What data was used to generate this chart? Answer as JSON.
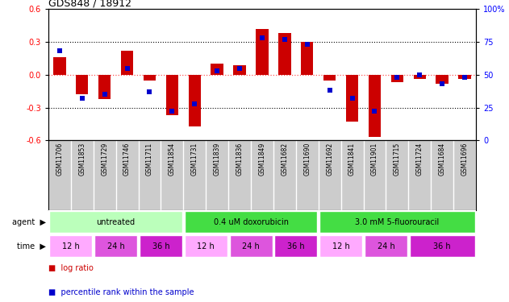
{
  "title": "GDS848 / 18912",
  "samples": [
    "GSM11706",
    "GSM11853",
    "GSM11729",
    "GSM11746",
    "GSM11711",
    "GSM11854",
    "GSM11731",
    "GSM11839",
    "GSM11836",
    "GSM11849",
    "GSM11682",
    "GSM11690",
    "GSM11692",
    "GSM11841",
    "GSM11901",
    "GSM11715",
    "GSM11724",
    "GSM11684",
    "GSM11696"
  ],
  "log_ratio": [
    0.16,
    -0.18,
    -0.22,
    0.22,
    -0.05,
    -0.37,
    -0.47,
    0.1,
    0.09,
    0.42,
    0.38,
    0.3,
    -0.05,
    -0.43,
    -0.57,
    -0.07,
    -0.04,
    -0.08,
    -0.04
  ],
  "percentile": [
    68,
    32,
    35,
    55,
    37,
    22,
    28,
    53,
    55,
    78,
    77,
    73,
    38,
    32,
    22,
    48,
    50,
    43,
    48
  ],
  "ylim_left": [
    -0.6,
    0.6
  ],
  "ylim_right": [
    0,
    100
  ],
  "yticks_left": [
    -0.6,
    -0.3,
    0.0,
    0.3,
    0.6
  ],
  "yticks_right": [
    0,
    25,
    50,
    75,
    100
  ],
  "bar_color": "#cc0000",
  "dot_color": "#0000cc",
  "zero_line_color": "#ff5555",
  "dotted_line_color": "#000000",
  "sample_bg": "#cccccc",
  "agent_groups": [
    {
      "label": "untreated",
      "start": 0,
      "end": 6,
      "color": "#bbffbb"
    },
    {
      "label": "0.4 uM doxorubicin",
      "start": 6,
      "end": 12,
      "color": "#44dd44"
    },
    {
      "label": "3.0 mM 5-fluorouracil",
      "start": 12,
      "end": 19,
      "color": "#44dd44"
    }
  ],
  "time_groups": [
    {
      "label": "12 h",
      "start": 0,
      "end": 2,
      "color": "#ffaaff"
    },
    {
      "label": "24 h",
      "start": 2,
      "end": 4,
      "color": "#dd55dd"
    },
    {
      "label": "36 h",
      "start": 4,
      "end": 6,
      "color": "#cc22cc"
    },
    {
      "label": "12 h",
      "start": 6,
      "end": 8,
      "color": "#ffaaff"
    },
    {
      "label": "24 h",
      "start": 8,
      "end": 10,
      "color": "#dd55dd"
    },
    {
      "label": "36 h",
      "start": 10,
      "end": 12,
      "color": "#cc22cc"
    },
    {
      "label": "12 h",
      "start": 12,
      "end": 14,
      "color": "#ffaaff"
    },
    {
      "label": "24 h",
      "start": 14,
      "end": 16,
      "color": "#dd55dd"
    },
    {
      "label": "36 h",
      "start": 16,
      "end": 19,
      "color": "#cc22cc"
    }
  ],
  "legend_bar_label": "log ratio",
  "legend_dot_label": "percentile rank within the sample"
}
